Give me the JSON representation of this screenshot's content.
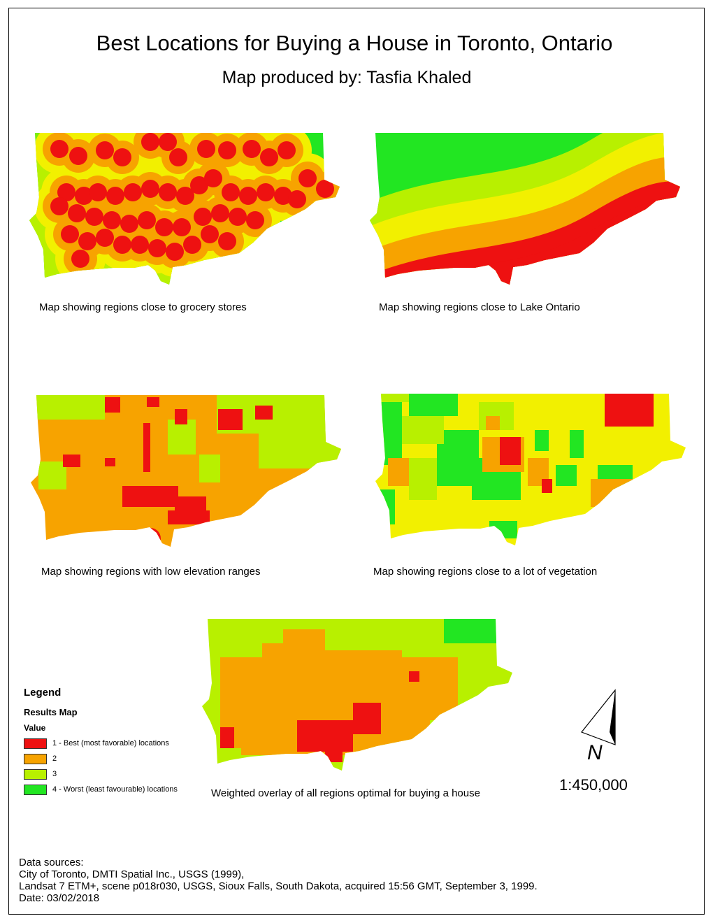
{
  "header": {
    "title": "Best Locations for Buying a House in Toronto, Ontario",
    "subtitle": "Map produced by: Tasfia Khaled"
  },
  "colors": {
    "best": "#ee1111",
    "class2": "#f7a300",
    "class3": "#b8f000",
    "worst": "#22e622",
    "mid_yellow": "#f2f000"
  },
  "panels": [
    {
      "caption": "Map showing regions close to grocery stores",
      "theme": "grocery"
    },
    {
      "caption": "Map showing regions close to Lake Ontario",
      "theme": "lake"
    },
    {
      "caption": "Map showing regions with low elevation ranges",
      "theme": "elevation"
    },
    {
      "caption": "Map showing regions close to a lot of vegetation",
      "theme": "vegetation"
    },
    {
      "caption": "Weighted overlay of all regions optimal for buying a house",
      "theme": "overlay"
    }
  ],
  "legend": {
    "title": "Legend",
    "subtitle": "Results Map",
    "value_label": "Value",
    "items": [
      {
        "label": "1 - Best (most favorable) locations",
        "color": "#ee1111"
      },
      {
        "label": "2",
        "color": "#f7a300"
      },
      {
        "label": "3",
        "color": "#b8f000"
      },
      {
        "label": "4 - Worst (least favourable) locations",
        "color": "#22e622"
      }
    ]
  },
  "north_arrow": {
    "letter": "N",
    "icon": "north-arrow-icon"
  },
  "scale": "1:450,000",
  "sources": {
    "line1": "Data sources:",
    "line2": "City of Toronto, DMTI Spatial Inc., USGS (1999),",
    "line3": "Landsat 7 ETM+, scene p018r030, USGS, Sioux Falls, South Dakota, acquired 15:56 GMT, September 3, 1999.",
    "line4": "Date: 03/02/2018"
  }
}
